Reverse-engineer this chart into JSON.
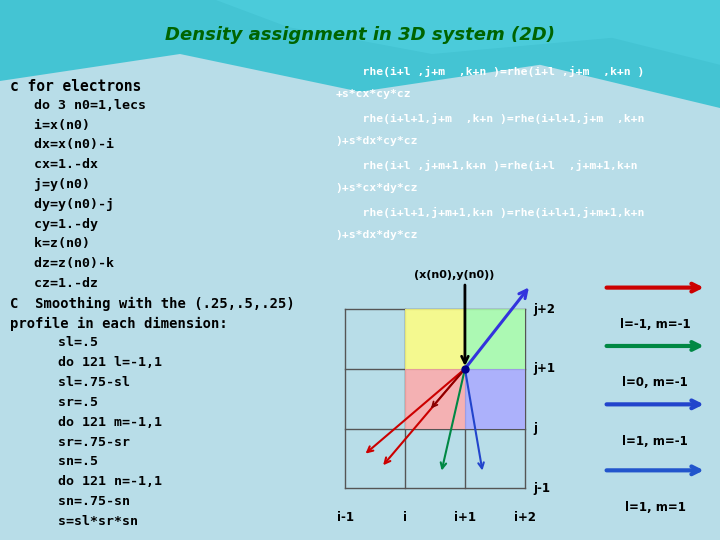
{
  "title": "Density assignment in 3D system (2D)",
  "title_color": "#006400",
  "bg_color": "#b8dde8",
  "bg_top_color": "#40c8d8",
  "code_left": [
    "c for electrons",
    "   do 3 n0=1,lecs",
    "   i=x(n0)",
    "   dx=x(n0)-i",
    "   cx=1.-dx",
    "   j=y(n0)",
    "   dy=y(n0)-j",
    "   cy=1.-dy",
    "   k=z(n0)",
    "   dz=z(n0)-k",
    "   cz=1.-dz",
    "C  Smoothing with the (.25,.5,.25)",
    "profile in each dimension:",
    "      sl=.5",
    "      do 121 l=-1,1",
    "      sl=.75-sl",
    "      sr=.5",
    "      do 121 m=-1,1",
    "      sr=.75-sr",
    "      sn=.5",
    "      do 121 n=-1,1",
    "      sn=.75-sn",
    "      s=sl*sr*sn"
  ],
  "code_right_lines": [
    "    rhe(i+l ,j+m  ,k+n )=rhe(i+l ,j+m  ,k+n )",
    "+s*cx*cy*cz",
    "    rhe(i+l+1,j+m  ,k+n )=rhe(i+l+1,j+m  ,k+n",
    ")+s*dx*cy*cz",
    "    rhe(i+l ,j+m+1,k+n )=rhe(i+l  ,j+m+1,k+n",
    ")+s*cx*dy*cz",
    "    rhe(i+l+1,j+m+1,k+n )=rhe(i+l+1,j+m+1,k+n",
    ")+s*dx*dy*cz"
  ],
  "code_right_bg": "#009898",
  "legend_items": [
    {
      "label": "l=-1, m=-1",
      "color": "#cc0000"
    },
    {
      "label": "l=0, m=-1",
      "color": "#008844"
    },
    {
      "label": "l=1, m=-1",
      "color": "#2244cc"
    },
    {
      "label": "l=1, m=1",
      "color": "#2255cc"
    }
  ],
  "grid_color": "#555555",
  "yellow_color": "#ffff80",
  "pink_color": "#ffaaaa",
  "blue_color": "#aaaaff",
  "green_color": "#aaffaa"
}
